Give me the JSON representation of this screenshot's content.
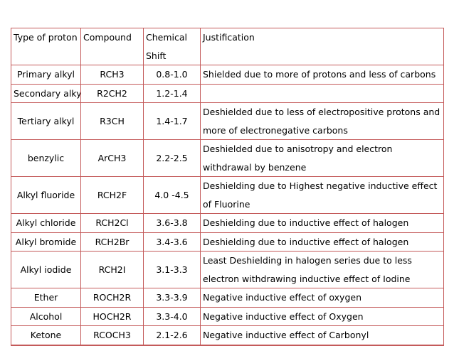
{
  "table": {
    "headers": [
      "Type of proton",
      "Compound",
      "Chemical Shift",
      "Justification"
    ],
    "rows": [
      [
        "Primary alkyl",
        "RCH3",
        "0.8-1.0",
        "Shielded due to more of protons and less of carbons"
      ],
      [
        "Secondary alkyl",
        "R2CH2",
        "1.2-1.4",
        ""
      ],
      [
        "Tertiary alkyl",
        "R3CH",
        "1.4-1.7",
        "Deshielded due to less of electropositive protons and more of electronegative carbons"
      ],
      [
        "benzylic",
        "ArCH3",
        "2.2-2.5",
        "Deshielded due to anisotropy and electron withdrawal by benzene"
      ],
      [
        "Alkyl fluoride",
        "RCH2F",
        "4.0 -4.5",
        "Deshielding due to Highest negative inductive effect of Fluorine"
      ],
      [
        "Alkyl chloride",
        "RCH2Cl",
        "3.6-3.8",
        "Deshielding due to inductive effect of halogen"
      ],
      [
        "Alkyl bromide",
        "RCH2Br",
        "3.4-3.6",
        "Deshielding due to inductive effect of halogen"
      ],
      [
        "Alkyl iodide",
        "RCH2I",
        "3.1-3.3",
        "Least Deshielding in halogen series due to less electron withdrawing inductive effect of Iodine"
      ],
      [
        "Ether",
        "ROCH2R",
        "3.3-3.9",
        "Negative inductive effect of  oxygen"
      ],
      [
        "Alcohol",
        "HOCH2R",
        "3.3-4.0",
        "Negative inductive effect of Oxygen"
      ],
      [
        "Ketone",
        "RCOCH3",
        "2.1-2.6",
        "Negative inductive effect of Carbonyl"
      ],
      [
        "",
        "",
        "",
        ""
      ]
    ]
  }
}
